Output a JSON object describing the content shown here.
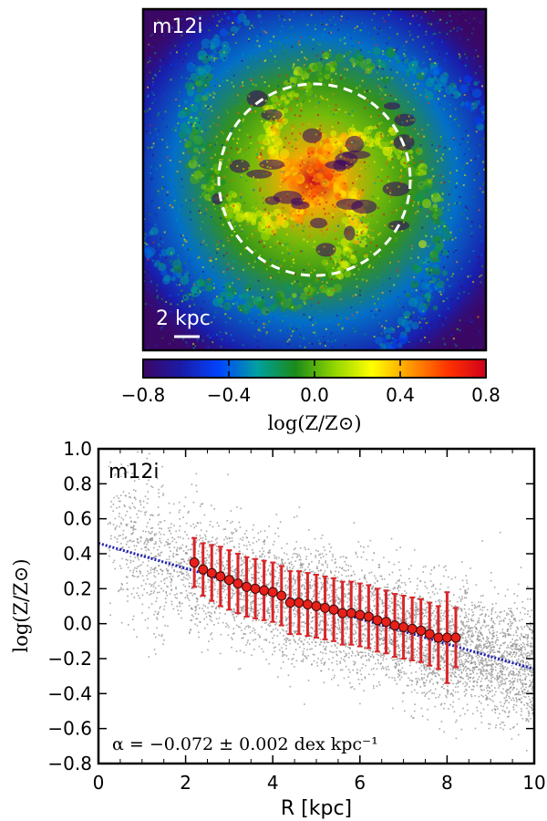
{
  "chart_data": [
    {
      "type": "heatmap",
      "panel_label": "m12i",
      "scale_bar_label": "2 kpc",
      "colorbar": {
        "label": "log(Z/Z⊙)",
        "min": -0.8,
        "max": 0.8,
        "ticks": [
          "−0.8",
          "−0.4",
          "0.0",
          "0.4",
          "0.8"
        ],
        "colors": [
          "#3b0764",
          "#1a1aa6",
          "#0044ff",
          "#00a0a0",
          "#1a8a1a",
          "#8fd400",
          "#ffff00",
          "#ff9a00",
          "#ff3300",
          "#d0001a"
        ]
      },
      "background_value": -0.8,
      "center_value": 0.8,
      "dashed_circle_radius_kpc": 4.5,
      "spiral_arms": 4
    },
    {
      "type": "scatter",
      "panel_label": "m12i",
      "xlabel": "R [kpc]",
      "ylabel": "log(Z/Z⊙)",
      "xlim": [
        0,
        10
      ],
      "ylim": [
        -0.8,
        1.0
      ],
      "xticks": [
        "0",
        "2",
        "4",
        "6",
        "8",
        "10"
      ],
      "yticks": [
        "−0.8",
        "−0.6",
        "−0.4",
        "−0.2",
        "0.0",
        "0.2",
        "0.4",
        "0.6",
        "0.8",
        "1.0"
      ],
      "annotation": "α = −0.072 ± 0.002 dex kpc⁻¹",
      "fit": {
        "slope": -0.072,
        "intercept": 0.46,
        "color": "#1f1fb4"
      },
      "particle_scatter_sigma": 0.17,
      "binned": {
        "x": [
          2.2,
          2.4,
          2.6,
          2.8,
          3.0,
          3.2,
          3.4,
          3.6,
          3.8,
          4.0,
          4.2,
          4.4,
          4.6,
          4.8,
          5.0,
          5.2,
          5.4,
          5.6,
          5.8,
          6.0,
          6.2,
          6.4,
          6.6,
          6.8,
          7.0,
          7.2,
          7.4,
          7.6,
          7.8,
          8.0,
          8.2
        ],
        "y": [
          0.35,
          0.31,
          0.29,
          0.27,
          0.25,
          0.23,
          0.21,
          0.2,
          0.19,
          0.18,
          0.16,
          0.12,
          0.12,
          0.11,
          0.1,
          0.09,
          0.08,
          0.06,
          0.06,
          0.05,
          0.04,
          0.02,
          0.01,
          -0.01,
          -0.02,
          -0.03,
          -0.04,
          -0.06,
          -0.08,
          -0.08,
          -0.08
        ],
        "err": [
          0.14,
          0.15,
          0.16,
          0.17,
          0.17,
          0.17,
          0.17,
          0.17,
          0.17,
          0.17,
          0.17,
          0.18,
          0.18,
          0.18,
          0.18,
          0.18,
          0.18,
          0.18,
          0.18,
          0.18,
          0.18,
          0.18,
          0.18,
          0.18,
          0.18,
          0.18,
          0.18,
          0.18,
          0.18,
          0.26,
          0.17
        ],
        "marker_color": "#e8201a",
        "error_color": "#d9262a"
      }
    }
  ]
}
